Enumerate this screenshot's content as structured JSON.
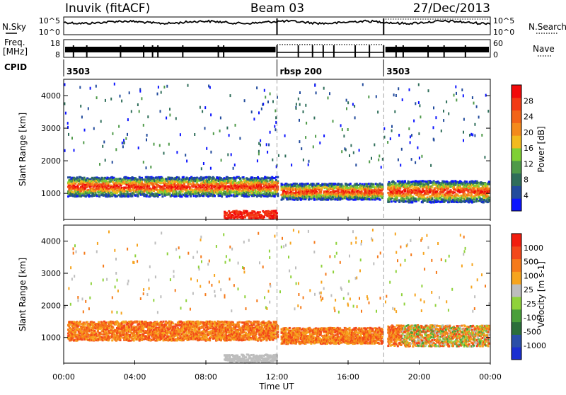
{
  "header": {
    "station": "Inuvik (fitACF)",
    "beam": "Beam 03",
    "date": "27/Dec/2013"
  },
  "strip": {
    "nsky_label": "N.Sky",
    "nsearch_label": "N.Search",
    "freq_label": "Freq.",
    "freq_unit": "[MHz]",
    "nave_label": "Nave",
    "cpid_label": "CPID",
    "noise_ticks_left": [
      "10^5",
      "10^0"
    ],
    "noise_ticks_right": [
      "10^5",
      "10^0"
    ],
    "freq_ticks": [
      "18",
      "8"
    ],
    "nave_ticks": [
      "60",
      "0"
    ],
    "cpid_segments": [
      {
        "start_hour": 0,
        "end_hour": 12,
        "label": "3503"
      },
      {
        "start_hour": 12,
        "end_hour": 18,
        "label": "rbsp 200"
      },
      {
        "start_hour": 18,
        "end_hour": 24,
        "label": "3503"
      }
    ]
  },
  "chart_data": [
    {
      "type": "heatmap",
      "name": "power",
      "ylabel": "Slant Range [km]",
      "y_ticks": [
        "1000",
        "2000",
        "3000",
        "4000"
      ],
      "ylim": [
        200,
        4500
      ],
      "colorbar_label": "Power [dB]",
      "colorbar_ticks": [
        "4",
        "8",
        "12",
        "16",
        "20",
        "24",
        "28"
      ],
      "colorbar_colors": [
        "#0c14ff",
        "#224b9c",
        "#2f6e5a",
        "#4f9a49",
        "#7fd034",
        "#f3ba1e",
        "#f48a1c",
        "#f26418",
        "#f23a14",
        "#f20a0a"
      ]
    },
    {
      "type": "heatmap",
      "name": "velocity",
      "ylabel": "Slant Range [km]",
      "y_ticks": [
        "1000",
        "2000",
        "3000",
        "4000"
      ],
      "ylim": [
        200,
        4500
      ],
      "colorbar_label": "Velocity [m s-1]",
      "colorbar_ticks": [
        "1000",
        "500",
        "100",
        "25",
        "-25",
        "-100",
        "-500",
        "-1000"
      ],
      "colorbar_colors": [
        "#1a2fd0",
        "#2a4fa8",
        "#2b6f3a",
        "#4a9f3a",
        "#8fd23b",
        "#bdbdbd",
        "#f6a41e",
        "#f57a1a",
        "#f3481a",
        "#f21d0e"
      ]
    }
  ],
  "x_axis": {
    "label": "Time UT",
    "ticks": [
      "00:00",
      "04:00",
      "08:00",
      "12:00",
      "16:00",
      "20:00",
      "00:00"
    ],
    "xlim_hours": [
      0,
      24
    ]
  }
}
